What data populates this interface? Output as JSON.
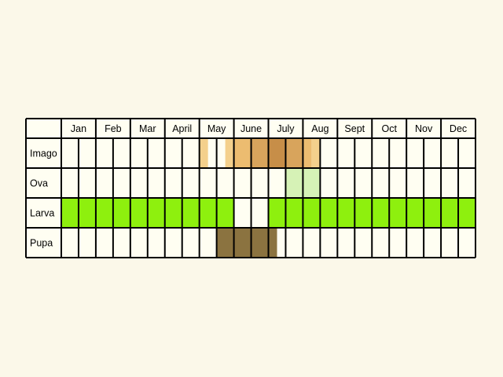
{
  "background_color": "#fbf8e9",
  "cell_color": "#fffef2",
  "grid_color": "#000000",
  "months": [
    "Jan",
    "Feb",
    "Mar",
    "April",
    "May",
    "June",
    "July",
    "Aug",
    "Sept",
    "Oct",
    "Nov",
    "Dec"
  ],
  "stages": [
    {
      "name": "Imago",
      "fills": [
        {
          "start_half": 8,
          "end_half": 8.5,
          "color": "#f4d08c"
        },
        {
          "start_half": 9.5,
          "end_half": 10,
          "color": "#f4d08c"
        },
        {
          "start_half": 10,
          "end_half": 11,
          "color": "#ecbc70"
        },
        {
          "start_half": 11,
          "end_half": 12,
          "color": "#d8a45c"
        },
        {
          "start_half": 12,
          "end_half": 13,
          "color": "#c78e48"
        },
        {
          "start_half": 13,
          "end_half": 14,
          "color": "#d8a45c"
        },
        {
          "start_half": 14,
          "end_half": 14.5,
          "color": "#ecbc70"
        },
        {
          "start_half": 14.5,
          "end_half": 15,
          "color": "#f4d08c"
        }
      ]
    },
    {
      "name": "Ova",
      "fills": [
        {
          "start_half": 13,
          "end_half": 15,
          "color": "#d6f2b6"
        }
      ]
    },
    {
      "name": "Larva",
      "fills": [
        {
          "start_half": 0,
          "end_half": 10,
          "color": "#8ef00e"
        },
        {
          "start_half": 12,
          "end_half": 24,
          "color": "#8ef00e"
        }
      ]
    },
    {
      "name": "Pupa",
      "fills": [
        {
          "start_half": 9,
          "end_half": 12.5,
          "color": "#8b7340"
        }
      ]
    }
  ]
}
